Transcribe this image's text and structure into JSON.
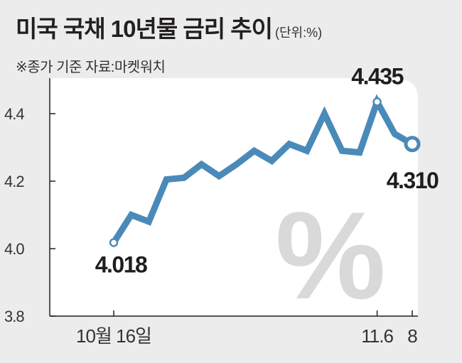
{
  "header": {
    "title": "미국 국채 10년물 금리 추이",
    "unit": "(단위:%)",
    "source": "※종가 기준   자료:마켓워치"
  },
  "colors": {
    "line": "#4a8ab9",
    "plot_bg": "#ffffff",
    "page_bg": "#ececec",
    "watermark": "#d9d9d9"
  },
  "watermark": "%",
  "chart_data": {
    "type": "line",
    "title": "미국 국채 10년물 금리 추이",
    "unit": "%",
    "ylim": [
      3.8,
      4.5
    ],
    "yticks": [
      "4.4",
      "4.2",
      "4.0",
      "3.8"
    ],
    "grid": false,
    "x_tick_labels": [
      "10월 16일",
      "11.6",
      "8"
    ],
    "series": [
      {
        "values": [
          4.018,
          4.1,
          4.08,
          4.205,
          4.21,
          4.25,
          4.215,
          4.25,
          4.29,
          4.26,
          4.31,
          4.29,
          4.4,
          4.29,
          4.285,
          4.435,
          4.34,
          4.31
        ]
      }
    ],
    "annotations": [
      {
        "point_index": 0,
        "label": "4.018"
      },
      {
        "point_index": 15,
        "label": "4.435"
      },
      {
        "point_index": 17,
        "label": "4.310"
      }
    ]
  }
}
